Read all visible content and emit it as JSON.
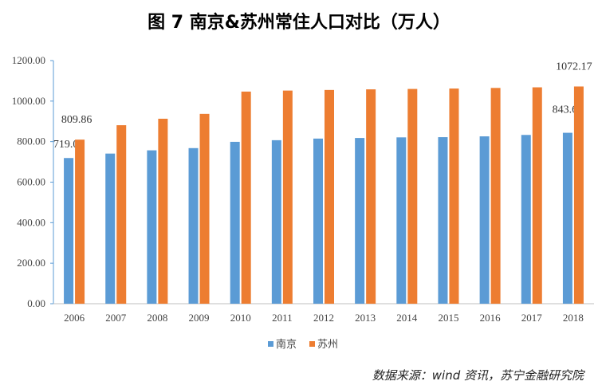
{
  "chart_data": {
    "type": "bar",
    "title": "图 7   南京&苏州常住人口对比（万人）",
    "categories": [
      "2006",
      "2007",
      "2008",
      "2009",
      "2010",
      "2011",
      "2012",
      "2013",
      "2014",
      "2015",
      "2016",
      "2017",
      "2018"
    ],
    "series": [
      {
        "name": "南京",
        "color": "#5B9BD5",
        "values": [
          719.06,
          741,
          757,
          768,
          799,
          807,
          815,
          818,
          821,
          822,
          826,
          833,
          843.62
        ],
        "labels": {
          "0": "719.06",
          "12": "843.62"
        }
      },
      {
        "name": "苏州",
        "color": "#ED7D31",
        "values": [
          809.86,
          881,
          913,
          937,
          1047,
          1052,
          1055,
          1058,
          1060,
          1062,
          1065,
          1068,
          1072.17
        ],
        "labels": {
          "0": "809.86",
          "12": "1072.17"
        }
      }
    ],
    "ylim": [
      0,
      1200
    ],
    "yticks": [
      "0.00",
      "200.00",
      "400.00",
      "600.00",
      "800.00",
      "1000.00",
      "1200.00"
    ],
    "grid": false,
    "legend": "bottom"
  },
  "source": "数据来源：wind 资讯，苏宁金融研究院"
}
